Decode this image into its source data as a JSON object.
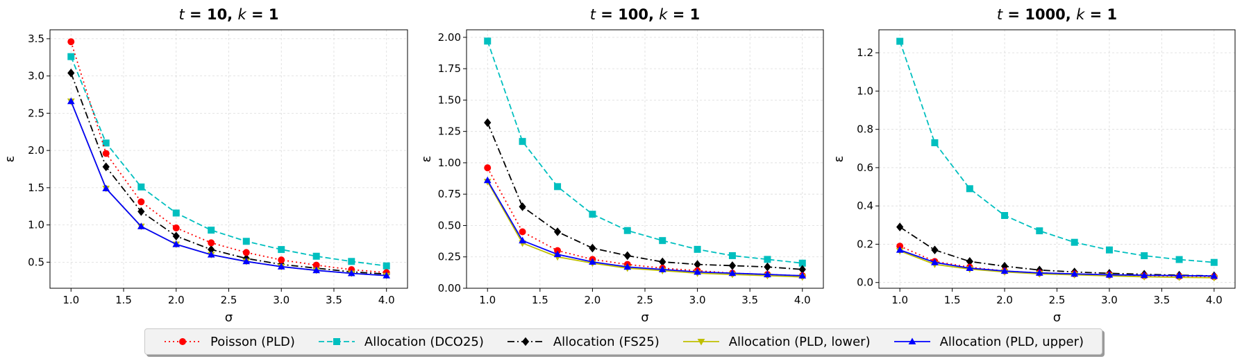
{
  "chart_data": [
    {
      "type": "line",
      "title_vars": [
        "t",
        "k"
      ],
      "title_values": [
        "10",
        "1"
      ],
      "xlabel": "σ",
      "ylabel": "ε",
      "xlim": [
        0.8,
        4.2
      ],
      "ylim": [
        0.15,
        3.62
      ],
      "xticks": [
        1.0,
        1.5,
        2.0,
        2.5,
        3.0,
        3.5,
        4.0
      ],
      "xtick_labels": [
        "1.0",
        "1.5",
        "2.0",
        "2.5",
        "3.0",
        "3.5",
        "4.0"
      ],
      "yticks": [
        0.5,
        1.0,
        1.5,
        2.0,
        2.5,
        3.0,
        3.5
      ],
      "ytick_labels": [
        "0.5",
        "1.0",
        "1.5",
        "2.0",
        "2.5",
        "3.0",
        "3.5"
      ],
      "grid": true,
      "x": [
        1.0,
        1.333,
        1.667,
        2.0,
        2.333,
        2.667,
        3.0,
        3.333,
        3.667,
        4.0
      ],
      "series": [
        {
          "name": "Poisson (PLD)",
          "values": [
            3.46,
            1.96,
            1.31,
            0.96,
            0.76,
            0.63,
            0.53,
            0.46,
            0.4,
            0.36
          ]
        },
        {
          "name": "Allocation (DCO25)",
          "values": [
            3.26,
            2.1,
            1.51,
            1.16,
            0.93,
            0.78,
            0.67,
            0.58,
            0.51,
            0.45
          ]
        },
        {
          "name": "Allocation (FS25)",
          "values": [
            3.04,
            1.78,
            1.18,
            0.85,
            0.67,
            0.55,
            0.47,
            0.42,
            0.37,
            0.34
          ]
        },
        {
          "name": "Allocation (PLD, lower)",
          "values": [
            2.66,
            1.49,
            0.98,
            0.74,
            0.6,
            0.51,
            0.44,
            0.39,
            0.35,
            0.32
          ]
        },
        {
          "name": "Allocation (PLD, upper)",
          "values": [
            2.66,
            1.49,
            0.98,
            0.74,
            0.6,
            0.51,
            0.44,
            0.39,
            0.35,
            0.32
          ]
        }
      ]
    },
    {
      "type": "line",
      "title_vars": [
        "t",
        "k"
      ],
      "title_values": [
        "100",
        "1"
      ],
      "xlabel": "σ",
      "ylabel": "ε",
      "xlim": [
        0.8,
        4.2
      ],
      "ylim": [
        0.0,
        2.06
      ],
      "xticks": [
        1.0,
        1.5,
        2.0,
        2.5,
        3.0,
        3.5,
        4.0
      ],
      "xtick_labels": [
        "1.0",
        "1.5",
        "2.0",
        "2.5",
        "3.0",
        "3.5",
        "4.0"
      ],
      "yticks": [
        0.0,
        0.25,
        0.5,
        0.75,
        1.0,
        1.25,
        1.5,
        1.75,
        2.0
      ],
      "ytick_labels": [
        "0.00",
        "0.25",
        "0.50",
        "0.75",
        "1.00",
        "1.25",
        "1.50",
        "1.75",
        "2.00"
      ],
      "grid": true,
      "x": [
        1.0,
        1.333,
        1.667,
        2.0,
        2.333,
        2.667,
        3.0,
        3.333,
        3.667,
        4.0
      ],
      "series": [
        {
          "name": "Poisson (PLD)",
          "values": [
            0.96,
            0.45,
            0.3,
            0.23,
            0.19,
            0.16,
            0.14,
            0.12,
            0.11,
            0.1
          ]
        },
        {
          "name": "Allocation (DCO25)",
          "values": [
            1.97,
            1.17,
            0.81,
            0.59,
            0.46,
            0.38,
            0.31,
            0.26,
            0.23,
            0.2
          ]
        },
        {
          "name": "Allocation (FS25)",
          "values": [
            1.32,
            0.65,
            0.45,
            0.32,
            0.26,
            0.21,
            0.19,
            0.18,
            0.17,
            0.15
          ]
        },
        {
          "name": "Allocation (PLD, lower)",
          "values": [
            0.85,
            0.36,
            0.25,
            0.2,
            0.16,
            0.14,
            0.12,
            0.11,
            0.1,
            0.09
          ]
        },
        {
          "name": "Allocation (PLD, upper)",
          "values": [
            0.86,
            0.38,
            0.27,
            0.21,
            0.17,
            0.15,
            0.13,
            0.12,
            0.11,
            0.1
          ]
        }
      ]
    },
    {
      "type": "line",
      "title_vars": [
        "t",
        "k"
      ],
      "title_values": [
        "1000",
        "1"
      ],
      "xlabel": "σ",
      "ylabel": "ε",
      "xlim": [
        0.8,
        4.2
      ],
      "ylim": [
        -0.03,
        1.32
      ],
      "xticks": [
        1.0,
        1.5,
        2.0,
        2.5,
        3.0,
        3.5,
        4.0
      ],
      "xtick_labels": [
        "1.0",
        "1.5",
        "2.0",
        "2.5",
        "3.0",
        "3.5",
        "4.0"
      ],
      "yticks": [
        0.0,
        0.2,
        0.4,
        0.6,
        0.8,
        1.0,
        1.2
      ],
      "ytick_labels": [
        "0.0",
        "0.2",
        "0.4",
        "0.6",
        "0.8",
        "1.0",
        "1.2"
      ],
      "grid": true,
      "x": [
        1.0,
        1.333,
        1.667,
        2.0,
        2.333,
        2.667,
        3.0,
        3.333,
        3.667,
        4.0
      ],
      "series": [
        {
          "name": "Poisson (PLD)",
          "values": [
            0.19,
            0.11,
            0.08,
            0.06,
            0.05,
            0.045,
            0.04,
            0.035,
            0.032,
            0.03
          ]
        },
        {
          "name": "Allocation (DCO25)",
          "values": [
            1.26,
            0.73,
            0.49,
            0.35,
            0.27,
            0.21,
            0.17,
            0.14,
            0.12,
            0.105
          ]
        },
        {
          "name": "Allocation (FS25)",
          "values": [
            0.29,
            0.17,
            0.11,
            0.085,
            0.065,
            0.055,
            0.048,
            0.043,
            0.038,
            0.035
          ]
        },
        {
          "name": "Allocation (PLD, lower)",
          "values": [
            0.165,
            0.095,
            0.07,
            0.055,
            0.045,
            0.04,
            0.035,
            0.03,
            0.027,
            0.025
          ]
        },
        {
          "name": "Allocation (PLD, upper)",
          "values": [
            0.17,
            0.105,
            0.075,
            0.06,
            0.05,
            0.045,
            0.04,
            0.038,
            0.036,
            0.034
          ]
        }
      ]
    }
  ],
  "legend": {
    "placement": "bottom-center",
    "items": [
      {
        "label": "Poisson (PLD)",
        "color": "#ff0000",
        "marker": "circle",
        "dash": "dotted"
      },
      {
        "label": "Allocation (DCO25)",
        "color": "#00bfbf",
        "marker": "square",
        "dash": "dashed"
      },
      {
        "label": "Allocation (FS25)",
        "color": "#000000",
        "marker": "diamond",
        "dash": "dashdot"
      },
      {
        "label": "Allocation (PLD, lower)",
        "color": "#bfbf00",
        "marker": "triangle-down",
        "dash": "solid"
      },
      {
        "label": "Allocation (PLD, upper)",
        "color": "#0000ff",
        "marker": "triangle-up",
        "dash": "solid"
      }
    ]
  }
}
